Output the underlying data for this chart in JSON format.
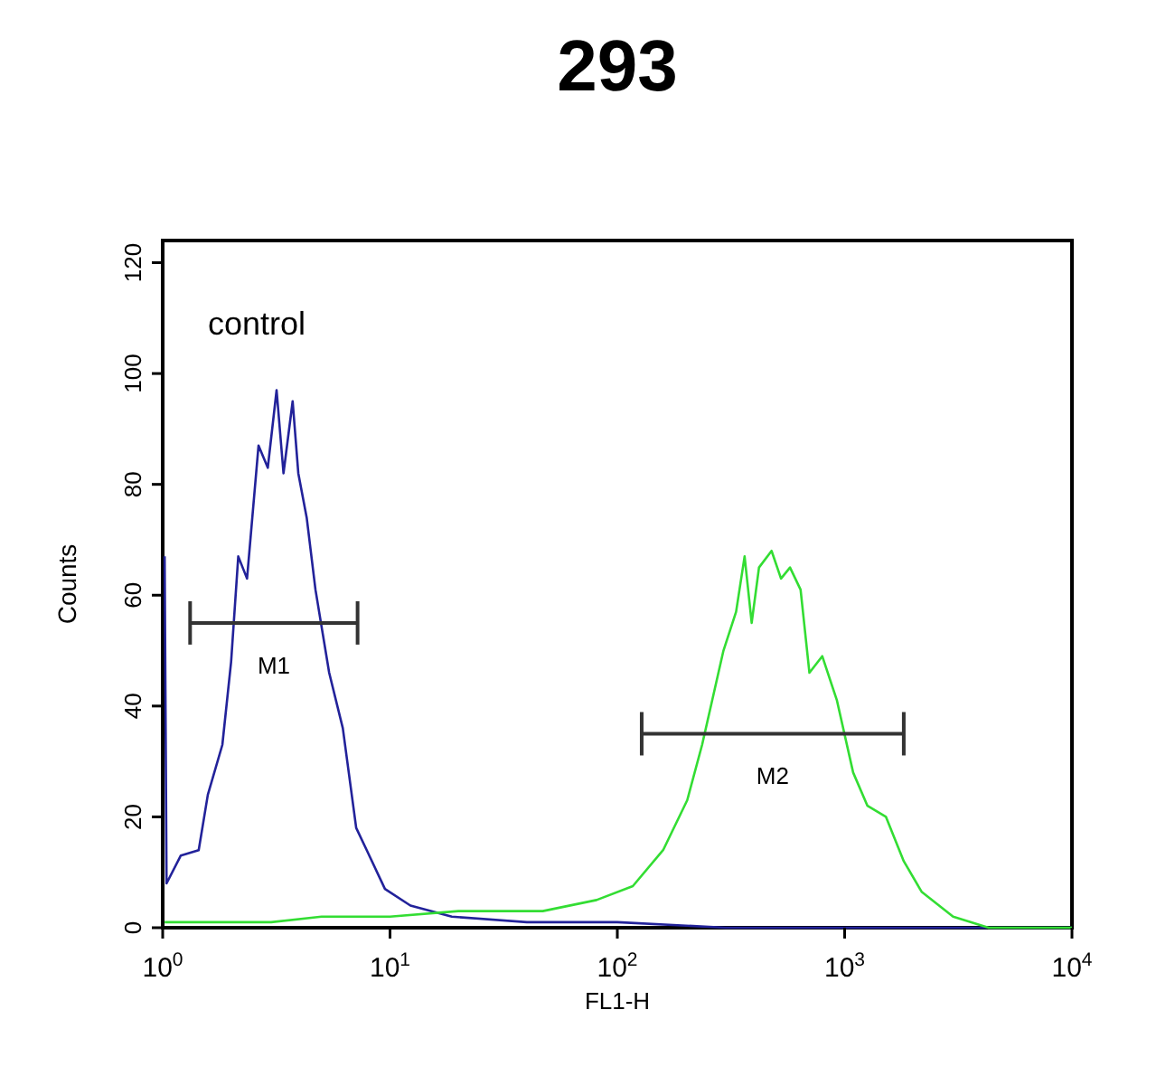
{
  "chart_data": {
    "type": "line",
    "title": "293",
    "xlabel": "FL1-H",
    "ylabel": "Counts",
    "log": "x",
    "grid": false,
    "xlim": [
      1,
      10000
    ],
    "ylim": [
      0,
      124
    ],
    "xticks": [
      {
        "value": 1,
        "label": "10$^{0}$"
      },
      {
        "value": 10,
        "label": "10$^{1}$"
      },
      {
        "value": 100,
        "label": "10$^{2}$"
      },
      {
        "value": 1000,
        "label": "10$^{3}$"
      },
      {
        "value": 10000,
        "label": "10$^{4}$"
      }
    ],
    "yticks": [
      0,
      20,
      40,
      60,
      80,
      100,
      120
    ],
    "annotations": [
      "control",
      "M1",
      "M2"
    ],
    "series": [
      {
        "color": "#22229a",
        "x": [
          1.02,
          1.04,
          1.2,
          1.44,
          1.58,
          1.83,
          2.0,
          2.15,
          2.35,
          2.64,
          2.9,
          3.17,
          3.4,
          3.73,
          3.95,
          4.3,
          4.7,
          5.4,
          6.2,
          7.1,
          7.9,
          9.5,
          12.3,
          18.7,
          40,
          100,
          300,
          1000,
          10000
        ],
        "values": [
          67,
          8,
          13,
          14,
          24,
          33,
          48,
          67,
          63,
          87,
          83,
          97,
          82,
          95,
          82,
          74,
          61,
          46,
          36,
          18,
          14,
          7,
          4,
          2,
          1,
          1,
          0,
          0,
          0
        ]
      },
      {
        "color": "#33dd33",
        "x": [
          1.02,
          2,
          3,
          5,
          10,
          20,
          47,
          81,
          117,
          159,
          203,
          236,
          268,
          293,
          333,
          363,
          390,
          420,
          477,
          525,
          575,
          640,
          700,
          797,
          925,
          1090,
          1260,
          1520,
          1820,
          2180,
          3000,
          4300,
          10000
        ],
        "values": [
          1,
          1,
          1,
          2,
          2,
          3,
          3,
          5,
          7.5,
          14,
          23,
          33,
          43,
          50,
          57,
          67,
          55,
          65,
          68,
          63,
          65,
          61,
          46,
          49,
          41,
          28,
          22,
          20,
          12,
          6.5,
          2,
          0,
          0
        ]
      },
      {
        "color": "#333333",
        "x": [
          1.32,
          7.2
        ],
        "values": [
          55,
          55
        ]
      },
      {
        "color": "#333333",
        "x": [
          128,
          1820
        ],
        "values": [
          35,
          35
        ]
      }
    ]
  }
}
